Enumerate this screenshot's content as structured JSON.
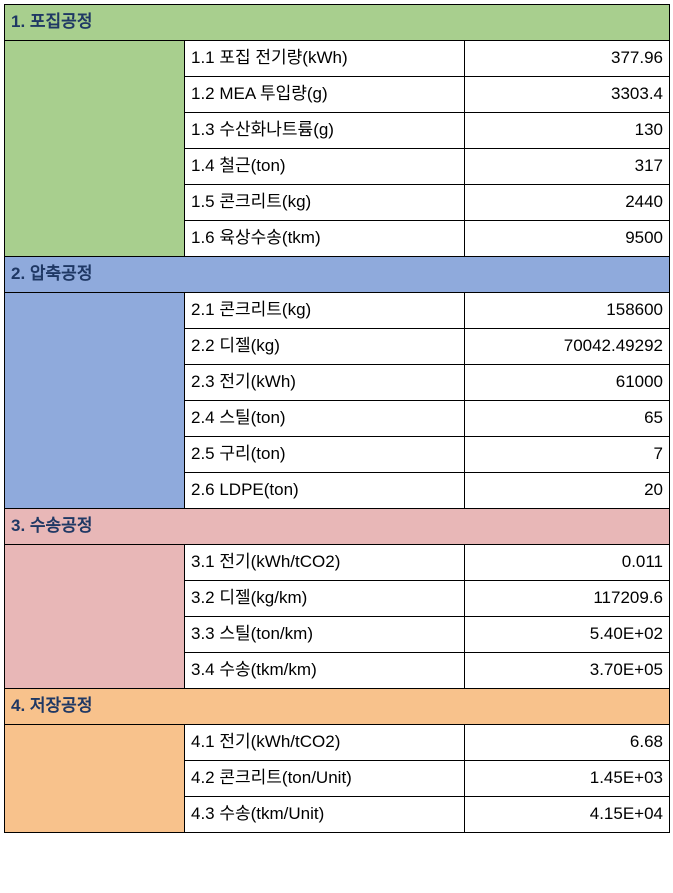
{
  "sections": [
    {
      "title": "1. 포집공정",
      "bg": "#a8cf8e",
      "rows": [
        {
          "label": "1.1 포집 전기량(kWh)",
          "value": "377.96"
        },
        {
          "label": "1.2 MEA 투입량(g)",
          "value": "3303.4"
        },
        {
          "label": "1.3 수산화나트륨(g)",
          "value": "130"
        },
        {
          "label": "1.4 철근(ton)",
          "value": "317"
        },
        {
          "label": "1.5 콘크리트(kg)",
          "value": "2440"
        },
        {
          "label": "1.6 육상수송(tkm)",
          "value": "9500"
        }
      ]
    },
    {
      "title": "2. 압축공정",
      "bg": "#8faadc",
      "rows": [
        {
          "label": "2.1 콘크리트(kg)",
          "value": "158600"
        },
        {
          "label": "2.2 디젤(kg)",
          "value": "70042.49292"
        },
        {
          "label": "2.3 전기(kWh)",
          "value": "61000"
        },
        {
          "label": "2.4 스틸(ton)",
          "value": "65"
        },
        {
          "label": "2.5 구리(ton)",
          "value": "7"
        },
        {
          "label": "2.6 LDPE(ton)",
          "value": "20"
        }
      ]
    },
    {
      "title": "3. 수송공정",
      "bg": "#e8b7b7",
      "rows": [
        {
          "label": "3.1 전기(kWh/tCO2)",
          "value": "0.011"
        },
        {
          "label": "3.2 디젤(kg/km)",
          "value": "117209.6"
        },
        {
          "label": "3.3 스틸(ton/km)",
          "value": "5.40E+02"
        },
        {
          "label": "3.4 수송(tkm/km)",
          "value": "3.70E+05"
        }
      ]
    },
    {
      "title": "4. 저장공정",
      "bg": "#f8c28c",
      "rows": [
        {
          "label": "4.1 전기(kWh/tCO2)",
          "value": "6.68"
        },
        {
          "label": "4.2 콘크리트(ton/Unit)",
          "value": "1.45E+03"
        },
        {
          "label": "4.3 수송(tkm/Unit)",
          "value": "4.15E+04"
        }
      ]
    }
  ]
}
